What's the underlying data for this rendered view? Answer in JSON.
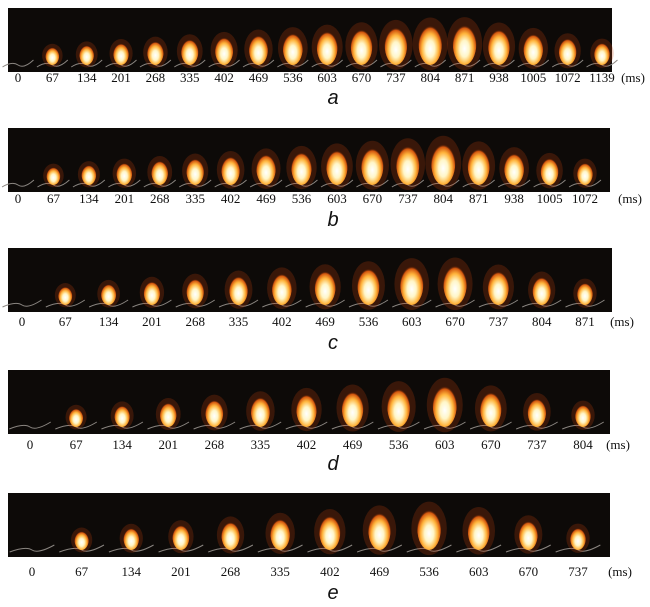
{
  "panels": [
    {
      "label": "a",
      "times": [
        0,
        67,
        134,
        201,
        268,
        335,
        402,
        469,
        536,
        603,
        670,
        737,
        804,
        871,
        938,
        1005,
        1072,
        1139
      ],
      "unit": "(ms)"
    },
    {
      "label": "b",
      "times": [
        0,
        67,
        134,
        201,
        268,
        335,
        402,
        469,
        536,
        603,
        670,
        737,
        804,
        871,
        938,
        1005,
        1072
      ],
      "unit": "(ms)"
    },
    {
      "label": "c",
      "times": [
        0,
        67,
        134,
        201,
        268,
        335,
        402,
        469,
        536,
        603,
        670,
        737,
        804,
        871
      ],
      "unit": "(ms)"
    },
    {
      "label": "d",
      "times": [
        0,
        67,
        134,
        201,
        268,
        335,
        402,
        469,
        536,
        603,
        670,
        737,
        804
      ],
      "unit": "(ms)"
    },
    {
      "label": "e",
      "times": [
        0,
        67,
        134,
        201,
        268,
        335,
        402,
        469,
        536,
        603,
        670,
        737
      ],
      "unit": "(ms)"
    }
  ]
}
